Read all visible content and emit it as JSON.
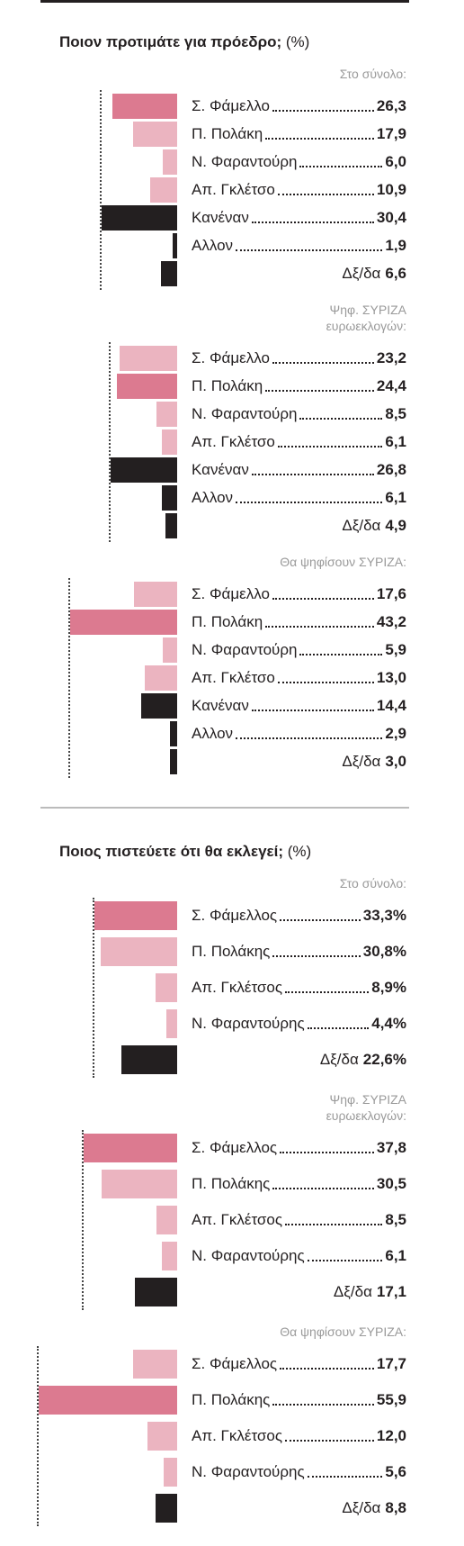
{
  "chart_data": [
    {
      "type": "bar",
      "title": "Ποιον προτιμάτε για πρόεδρο;",
      "units": "(%)",
      "subtitle": [
        "Στο σύνολο:"
      ],
      "categories": [
        "Σ. Φάμελλο",
        "Π. Πολάκη",
        "Ν. Φαραντούρη",
        "Απ. Γκλέτσο",
        "Κανέναν",
        "Αλλον",
        "Δξ/δα"
      ],
      "values": [
        26.3,
        17.9,
        6.0,
        10.9,
        30.4,
        1.9,
        6.6
      ],
      "value_labels": [
        "26,3",
        "17,9",
        "6,0",
        "10,9",
        "30,4",
        "1,9",
        "6,6"
      ],
      "colors": [
        "#dc7a90",
        "#ebb4c0",
        "#ebb4c0",
        "#ebb4c0",
        "#231f20",
        "#231f20",
        "#231f20"
      ]
    },
    {
      "type": "bar",
      "subtitle": [
        "Ψηφ. ΣΥΡΙΖΑ",
        "ευρωεκλογών:"
      ],
      "categories": [
        "Σ. Φάμελλο",
        "Π. Πολάκη",
        "Ν. Φαραντούρη",
        "Απ. Γκλέτσο",
        "Κανέναν",
        "Αλλον",
        "Δξ/δα"
      ],
      "values": [
        23.2,
        24.4,
        8.5,
        6.1,
        26.8,
        6.1,
        4.9
      ],
      "value_labels": [
        "23,2",
        "24,4",
        "8,5",
        "6,1",
        "26,8",
        "6,1",
        "4,9"
      ],
      "colors": [
        "#ebb4c0",
        "#dc7a90",
        "#ebb4c0",
        "#ebb4c0",
        "#231f20",
        "#231f20",
        "#231f20"
      ]
    },
    {
      "type": "bar",
      "subtitle": [
        "Θα ψηφίσουν ΣΥΡΙΖΑ:"
      ],
      "categories": [
        "Σ. Φάμελλο",
        "Π. Πολάκη",
        "Ν. Φαραντούρη",
        "Απ. Γκλέτσο",
        "Κανέναν",
        "Αλλον",
        "Δξ/δα"
      ],
      "values": [
        17.6,
        43.2,
        5.9,
        13.0,
        14.4,
        2.9,
        3.0
      ],
      "value_labels": [
        "17,6",
        "43,2",
        "5,9",
        "13,0",
        "14,4",
        "2,9",
        "3,0"
      ],
      "colors": [
        "#ebb4c0",
        "#dc7a90",
        "#ebb4c0",
        "#ebb4c0",
        "#231f20",
        "#231f20",
        "#231f20"
      ]
    },
    {
      "type": "bar",
      "title": "Ποιος πιστεύετε ότι θα εκλεγεί;",
      "units": "(%)",
      "subtitle": [
        "Στο σύνολο:"
      ],
      "categories": [
        "Σ. Φάμελλος",
        "Π. Πολάκης",
        "Απ. Γκλέτσος",
        "Ν. Φαραντούρης",
        "Δξ/δα"
      ],
      "values": [
        33.3,
        30.8,
        8.9,
        4.4,
        22.6
      ],
      "value_labels": [
        "33,3%",
        "30,8%",
        "8,9%",
        "4,4%",
        "22,6%"
      ],
      "colors": [
        "#dc7a90",
        "#ebb4c0",
        "#ebb4c0",
        "#ebb4c0",
        "#231f20"
      ]
    },
    {
      "type": "bar",
      "subtitle": [
        "Ψηφ. ΣΥΡΙΖΑ",
        "ευρωεκλογών:"
      ],
      "categories": [
        "Σ. Φάμελλος",
        "Π. Πολάκης",
        "Απ. Γκλέτσος",
        "Ν. Φαραντούρης",
        "Δξ/δα"
      ],
      "values": [
        37.8,
        30.5,
        8.5,
        6.1,
        17.1
      ],
      "value_labels": [
        "37,8",
        "30,5",
        "8,5",
        "6,1",
        "17,1"
      ],
      "colors": [
        "#dc7a90",
        "#ebb4c0",
        "#ebb4c0",
        "#ebb4c0",
        "#231f20"
      ]
    },
    {
      "type": "bar",
      "subtitle": [
        "Θα ψηφίσουν ΣΥΡΙΖΑ:"
      ],
      "categories": [
        "Σ. Φάμελλος",
        "Π. Πολάκης",
        "Απ. Γκλέτσος",
        "Ν. Φαραντούρης",
        "Δξ/δα"
      ],
      "values": [
        17.7,
        55.9,
        12.0,
        5.6,
        8.8
      ],
      "value_labels": [
        "17,7",
        "55,9",
        "12,0",
        "5,6",
        "8,8"
      ],
      "colors": [
        "#ebb4c0",
        "#dc7a90",
        "#ebb4c0",
        "#ebb4c0",
        "#231f20"
      ]
    }
  ]
}
